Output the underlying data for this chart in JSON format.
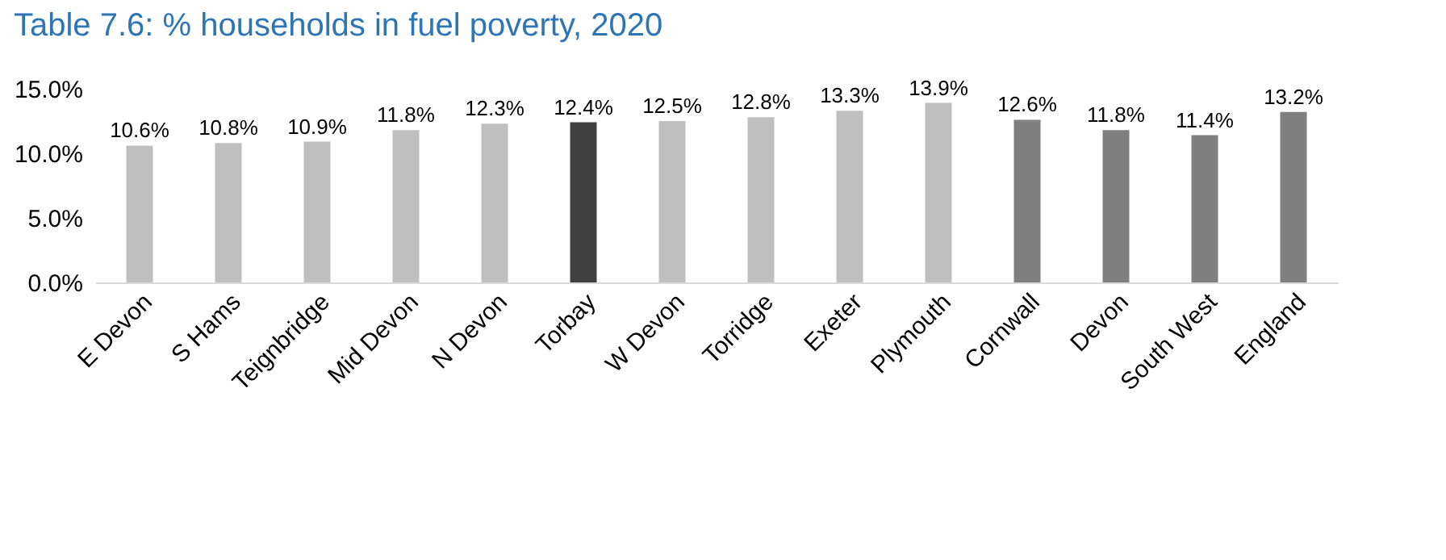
{
  "chart_data": {
    "type": "bar",
    "title": "Table 7.6: % households in fuel poverty, 2020",
    "categories": [
      "E Devon",
      "S Hams",
      "Teignbridge",
      "Mid Devon",
      "N Devon",
      "Torbay",
      "W Devon",
      "Torridge",
      "Exeter",
      "Plymouth",
      "Cornwall",
      "Devon",
      "South West",
      "England"
    ],
    "values": [
      10.6,
      10.8,
      10.9,
      11.8,
      12.3,
      12.4,
      12.5,
      12.8,
      13.3,
      13.9,
      12.6,
      11.8,
      11.4,
      13.2
    ],
    "value_labels": [
      "10.6%",
      "10.8%",
      "10.9%",
      "11.8%",
      "12.3%",
      "12.4%",
      "12.5%",
      "12.8%",
      "13.3%",
      "13.9%",
      "12.6%",
      "11.8%",
      "11.4%",
      "13.2%"
    ],
    "colors": [
      "#bfbfbf",
      "#bfbfbf",
      "#bfbfbf",
      "#bfbfbf",
      "#bfbfbf",
      "#404040",
      "#bfbfbf",
      "#bfbfbf",
      "#bfbfbf",
      "#bfbfbf",
      "#7f7f7f",
      "#7f7f7f",
      "#7f7f7f",
      "#7f7f7f"
    ],
    "ylim": [
      0,
      15
    ],
    "yticks": [
      {
        "value": 0,
        "label": "0.0%"
      },
      {
        "value": 5,
        "label": "5.0%"
      },
      {
        "value": 10,
        "label": "10.0%"
      },
      {
        "value": 15,
        "label": "15.0%"
      }
    ],
    "grid": false,
    "legend": false
  }
}
